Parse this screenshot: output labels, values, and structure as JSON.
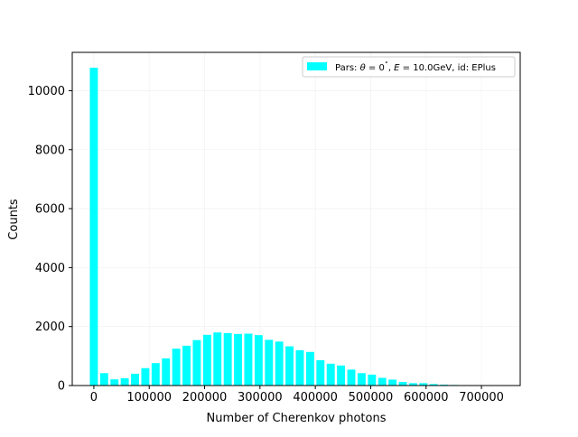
{
  "chart_data": {
    "type": "bar",
    "title": "",
    "xlabel": "Number of Cherenkov photons",
    "ylabel": "Counts",
    "xlim": [
      -39000,
      770000
    ],
    "ylim": [
      0,
      11300
    ],
    "xticks": [
      0,
      100000,
      200000,
      300000,
      400000,
      500000,
      600000,
      700000
    ],
    "yticks": [
      0,
      2000,
      4000,
      6000,
      8000,
      10000
    ],
    "grid": true,
    "legend_position": "top-right",
    "bar_color": "#00ffff",
    "series": [
      {
        "name": "Pars: θ = 0˚, E = 10.0GeV, id: EPlus",
        "x": [
          0,
          18600,
          37200,
          55800,
          74400,
          93000,
          111600,
          130200,
          148800,
          167400,
          186000,
          204600,
          223200,
          241800,
          260400,
          279000,
          297600,
          316200,
          334800,
          353400,
          372000,
          390600,
          409200,
          427800,
          446400,
          465000,
          483600,
          502200,
          520800,
          539400,
          558000,
          576600,
          595200,
          613800,
          632400,
          651000,
          669600,
          688200,
          706800
        ],
        "values": [
          10780,
          420,
          210,
          250,
          400,
          590,
          760,
          920,
          1250,
          1350,
          1540,
          1720,
          1800,
          1780,
          1750,
          1760,
          1710,
          1550,
          1490,
          1330,
          1200,
          1140,
          860,
          740,
          680,
          540,
          420,
          370,
          260,
          200,
          120,
          80,
          80,
          50,
          30,
          20,
          10,
          10,
          5
        ]
      }
    ],
    "legend": {
      "label_prefix": "Pars: ",
      "theta_sym": "θ",
      "eq1": " = 0",
      "deg": "˚",
      "sep": ", ",
      "e_sym": "E",
      "eq2": " = 10.0GeV, id: EPlus"
    }
  }
}
